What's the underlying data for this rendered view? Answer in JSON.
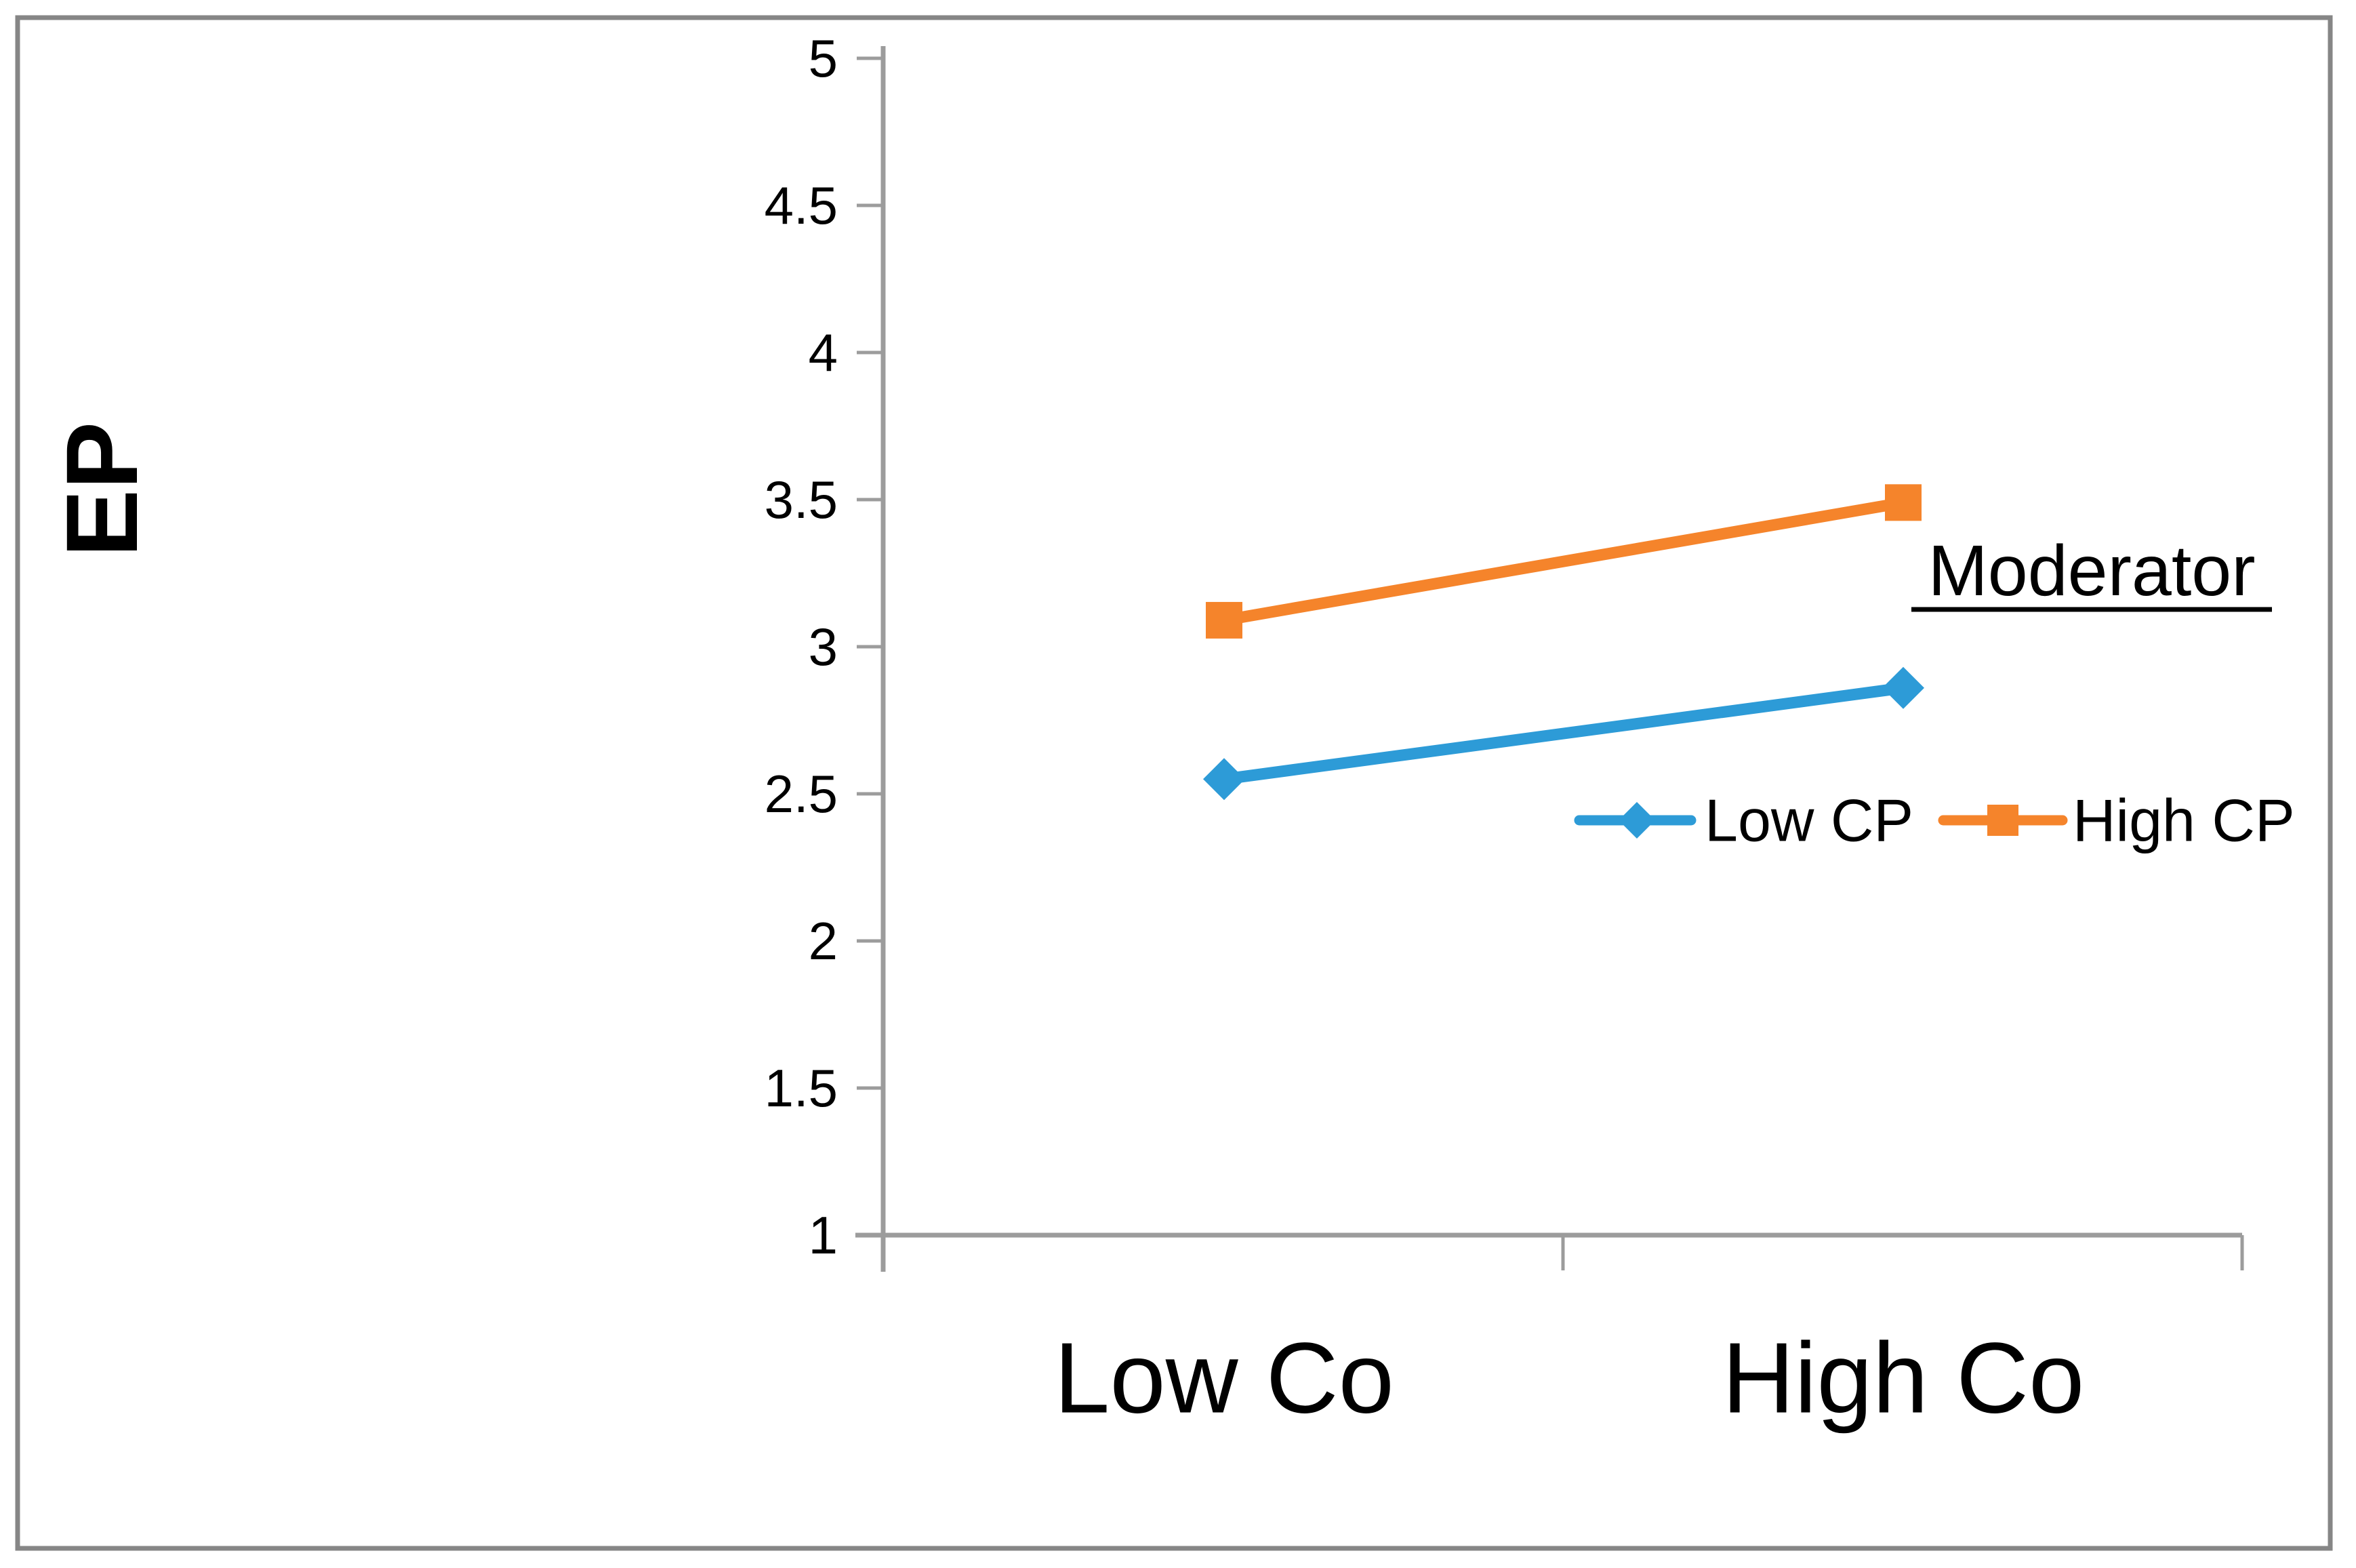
{
  "window": {
    "background_color": "#FFFFFF",
    "frame_border_color": "#868686",
    "axis_color": "#9C9C9C",
    "text_color": "#000000"
  },
  "chart_data": {
    "type": "line",
    "title": "",
    "ylabel": "EP",
    "xlabel": "",
    "categories": [
      "Low Co",
      "High Co"
    ],
    "series": [
      {
        "name": "Low CP",
        "values": [
          2.55,
          2.86
        ],
        "color": "#2D9BD7",
        "marker": "diamond"
      },
      {
        "name": "High CP",
        "values": [
          3.09,
          3.49
        ],
        "color": "#F5842B",
        "marker": "square"
      }
    ],
    "ylim": [
      1,
      5
    ],
    "ytick_step": 0.5,
    "yticks": [
      5,
      4.5,
      4,
      3.5,
      3,
      2.5,
      2,
      1.5,
      1
    ],
    "ytick_labels": [
      "5",
      "4.5",
      "4",
      "3.5",
      "3",
      "2.5",
      "2",
      "1.5",
      "1"
    ],
    "grid": false,
    "legend_position": "inside right",
    "annotation": "Moderator"
  }
}
